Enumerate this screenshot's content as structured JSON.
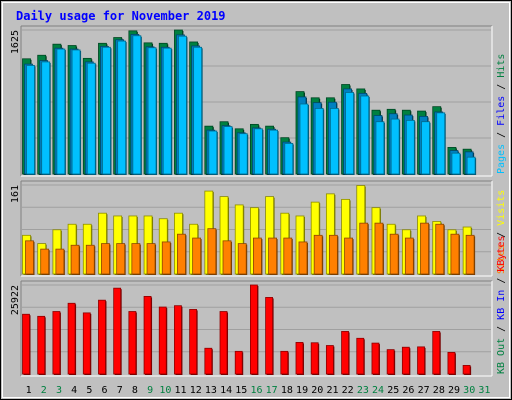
{
  "title": "Daily usage for November 2019",
  "colors": {
    "frame_bg": "#c0c0c0",
    "plot_bg": "#c0c0c0",
    "title": "#0000ff",
    "hits": "#008040",
    "files": "#0080c0",
    "pages": "#00c0ff",
    "visits": "#ffff00",
    "sites": "#ff8000",
    "kbytes": "#ff0000",
    "weekend": "#008040",
    "weekday": "#000000"
  },
  "chart_data": [
    {
      "type": "bar",
      "panel": "top",
      "scale_label": "1625",
      "ylim": [
        0,
        1625
      ],
      "legend": [
        {
          "text": "Hits",
          "color": "#008040"
        },
        {
          "text": "Files",
          "color": "#0000ff"
        },
        {
          "text": "Pages",
          "color": "#00c0ff"
        }
      ],
      "categories": [
        "1",
        "2",
        "3",
        "4",
        "5",
        "6",
        "7",
        "8",
        "9",
        "10",
        "11",
        "12",
        "13",
        "14",
        "15",
        "16",
        "17",
        "18",
        "19",
        "20",
        "21",
        "22",
        "23",
        "24",
        "25",
        "26",
        "27",
        "28",
        "29",
        "30",
        "31"
      ],
      "series": [
        {
          "name": "Hits",
          "values": [
            1300,
            1340,
            1465,
            1450,
            1305,
            1475,
            1540,
            1615,
            1480,
            1475,
            1625,
            1490,
            540,
            590,
            510,
            560,
            540,
            410,
            930,
            860,
            860,
            1010,
            960,
            720,
            730,
            720,
            710,
            760,
            300,
            280,
            0
          ]
        },
        {
          "name": "Files",
          "values": [
            1240,
            1280,
            1420,
            1410,
            1265,
            1440,
            1515,
            1575,
            1435,
            1430,
            1570,
            1445,
            495,
            545,
            465,
            520,
            505,
            360,
            870,
            805,
            810,
            960,
            910,
            660,
            680,
            665,
            650,
            700,
            265,
            250,
            0
          ]
        },
        {
          "name": "Pages",
          "values": [
            1225,
            1265,
            1410,
            1400,
            1250,
            1430,
            1500,
            1560,
            1425,
            1420,
            1555,
            1430,
            485,
            535,
            455,
            510,
            495,
            345,
            790,
            740,
            740,
            920,
            880,
            590,
            620,
            605,
            590,
            690,
            235,
            190,
            0
          ]
        }
      ]
    },
    {
      "type": "bar",
      "panel": "middle",
      "scale_label": "161",
      "ylim": [
        0,
        161
      ],
      "legend": [
        {
          "text": "Visits",
          "color": "#ffff00"
        },
        {
          "text": "Sites",
          "color": "#ff8000"
        }
      ],
      "categories": [
        "1",
        "2",
        "3",
        "4",
        "5",
        "6",
        "7",
        "8",
        "9",
        "10",
        "11",
        "12",
        "13",
        "14",
        "15",
        "16",
        "17",
        "18",
        "19",
        "20",
        "21",
        "22",
        "23",
        "24",
        "25",
        "26",
        "27",
        "28",
        "29",
        "30",
        "31"
      ],
      "series": [
        {
          "name": "Visits",
          "values": [
            70,
            55,
            80,
            90,
            90,
            110,
            105,
            105,
            105,
            100,
            110,
            90,
            150,
            140,
            125,
            120,
            140,
            110,
            105,
            130,
            145,
            135,
            160,
            120,
            90,
            80,
            105,
            95,
            80,
            85,
            0
          ]
        },
        {
          "name": "Sites",
          "values": [
            60,
            45,
            45,
            52,
            52,
            55,
            55,
            55,
            55,
            58,
            72,
            65,
            82,
            60,
            55,
            65,
            65,
            65,
            58,
            70,
            70,
            65,
            92,
            92,
            72,
            65,
            92,
            90,
            72,
            70,
            0
          ]
        }
      ]
    },
    {
      "type": "bar",
      "panel": "bottom",
      "scale_label": "25922",
      "ylim": [
        0,
        25922
      ],
      "legend": [
        {
          "text": "KBytes",
          "color": "#ff0000"
        },
        {
          "text": "KB In",
          "color": "#0000ff"
        },
        {
          "text": "KB Out",
          "color": "#008040"
        }
      ],
      "categories": [
        "1",
        "2",
        "3",
        "4",
        "5",
        "6",
        "7",
        "8",
        "9",
        "10",
        "11",
        "12",
        "13",
        "14",
        "15",
        "16",
        "17",
        "18",
        "19",
        "20",
        "21",
        "22",
        "23",
        "24",
        "25",
        "26",
        "27",
        "28",
        "29",
        "30",
        "31"
      ],
      "series": [
        {
          "name": "KBytes",
          "values": [
            17400,
            16800,
            18200,
            20600,
            17800,
            21500,
            25000,
            18200,
            22600,
            19500,
            19900,
            18800,
            7500,
            18200,
            6600,
            25922,
            22300,
            6600,
            9200,
            9100,
            8300,
            12400,
            10400,
            9000,
            7100,
            7800,
            7900,
            12400,
            6300,
            2500,
            0
          ]
        }
      ]
    }
  ]
}
